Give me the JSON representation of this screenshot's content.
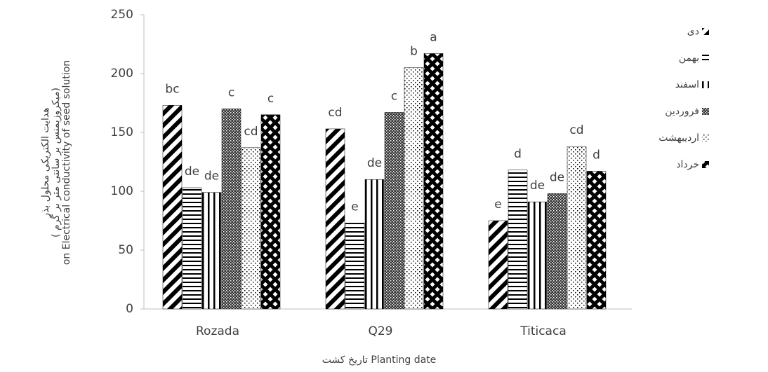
{
  "chart_data": {
    "type": "bar",
    "y_label": [
      "هدایت الکتریکی محلول بذر",
      "( میکروزیمنس بر سانتی متر بر گرم)",
      "on Electrical conductivity of seed solution"
    ],
    "x_label": "تاریخ کشت Planting date",
    "categories": [
      "Rozada",
      "Q29",
      "Titicaca"
    ],
    "ylim": [
      0,
      250
    ],
    "yticks": [
      0,
      50,
      100,
      150,
      200,
      250
    ],
    "series": [
      {
        "name": "دی",
        "color": "#000000",
        "pattern": "diagonal",
        "values": [
          173,
          153,
          75
        ],
        "letters": [
          "bc",
          "cd",
          "e"
        ]
      },
      {
        "name": "بهمن",
        "color": "#000000",
        "pattern": "horizontal",
        "values": [
          103,
          73,
          118
        ],
        "letters": [
          "de",
          "e",
          "d"
        ]
      },
      {
        "name": "اسفند",
        "color": "#000000",
        "pattern": "vertical",
        "values": [
          99,
          110,
          91
        ],
        "letters": [
          "de",
          "de",
          "de"
        ]
      },
      {
        "name": "فروردین",
        "color": "#000000",
        "pattern": "checker",
        "values": [
          170,
          167,
          98
        ],
        "letters": [
          "c",
          "c",
          "de"
        ]
      },
      {
        "name": "اردیبهشت",
        "color": "#000000",
        "pattern": "dots",
        "values": [
          137,
          205,
          138
        ],
        "letters": [
          "cd",
          "b",
          "cd"
        ]
      },
      {
        "name": "خرداد",
        "color": "#000000",
        "pattern": "diamond",
        "values": [
          165,
          217,
          117
        ],
        "letters": [
          "c",
          "a",
          "d"
        ]
      }
    ]
  }
}
